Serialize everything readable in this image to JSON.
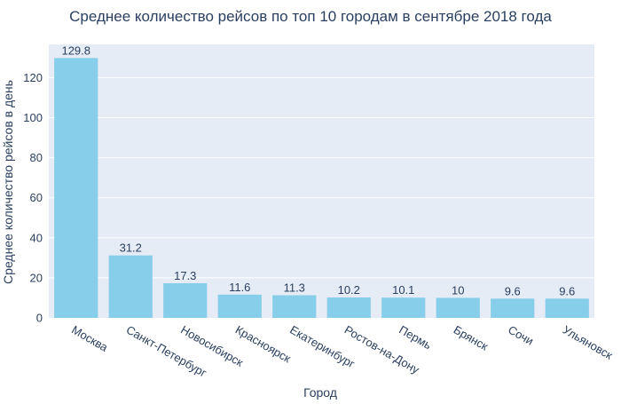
{
  "chart_data": {
    "type": "bar",
    "title": "Среднее количество рейсов по топ 10 городам в сентябре 2018 года",
    "xlabel": "Город",
    "ylabel": "Среднее количество рейсов в день",
    "categories": [
      "Москва",
      "Санкт-Петербург",
      "Новосибирск",
      "Красноярск",
      "Екатеринбург",
      "Ростов-на-Дону",
      "Пермь",
      "Брянск",
      "Сочи",
      "Ульяновск"
    ],
    "values": [
      129.8,
      31.2,
      17.3,
      11.6,
      11.3,
      10.2,
      10.1,
      10,
      9.6,
      9.6
    ],
    "value_labels": [
      "129.8",
      "31.2",
      "17.3",
      "11.6",
      "11.3",
      "10.2",
      "10.1",
      "10",
      "9.6",
      "9.6"
    ],
    "y_ticks": [
      0,
      20,
      40,
      60,
      80,
      100,
      120
    ],
    "ylim": [
      0,
      136.6
    ],
    "grid": true,
    "legend": false,
    "colors": {
      "bar": "#87ceeb",
      "plot_background": "#e5ecf6",
      "grid": "#ffffff",
      "text": "#2a3f5f"
    }
  }
}
